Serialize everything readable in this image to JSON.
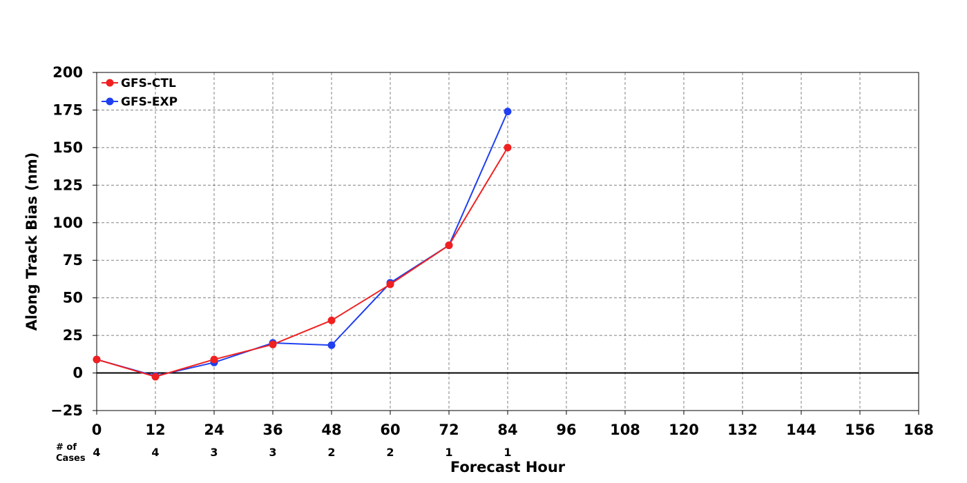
{
  "chart_data": {
    "type": "line",
    "xlabel": "Forecast Hour",
    "ylabel": "Along Track Bias (nm)",
    "xlim": [
      0,
      168
    ],
    "ylim": [
      -25,
      200
    ],
    "x_ticks": [
      0,
      12,
      24,
      36,
      48,
      60,
      72,
      84,
      96,
      108,
      120,
      132,
      144,
      156,
      168
    ],
    "y_ticks": [
      -25,
      0,
      25,
      50,
      75,
      100,
      125,
      150,
      175,
      200
    ],
    "y_tick_labels": [
      "−25",
      "0",
      "25",
      "50",
      "75",
      "100",
      "125",
      "150",
      "175",
      "200"
    ],
    "grid": true,
    "legend_position": "top-left",
    "zero_line": true,
    "series": [
      {
        "name": "GFS-EXP",
        "color": "#1f3ff0",
        "x": [
          0,
          12,
          24,
          36,
          48,
          60,
          72,
          84
        ],
        "values": [
          9,
          -2,
          7,
          20,
          18.5,
          60,
          85,
          174
        ]
      },
      {
        "name": "GFS-CTL",
        "color": "#f02020",
        "x": [
          0,
          12,
          24,
          36,
          48,
          60,
          72,
          84
        ],
        "values": [
          9,
          -2.5,
          9,
          19,
          35,
          59,
          85,
          150
        ]
      }
    ],
    "legend_order": [
      "GFS-CTL",
      "GFS-EXP"
    ],
    "cases": {
      "label_line1": "# of",
      "label_line2": "Cases",
      "x": [
        0,
        12,
        24,
        36,
        48,
        60,
        72,
        84
      ],
      "values": [
        "4",
        "4",
        "3",
        "3",
        "2",
        "2",
        "1",
        "1"
      ]
    }
  }
}
